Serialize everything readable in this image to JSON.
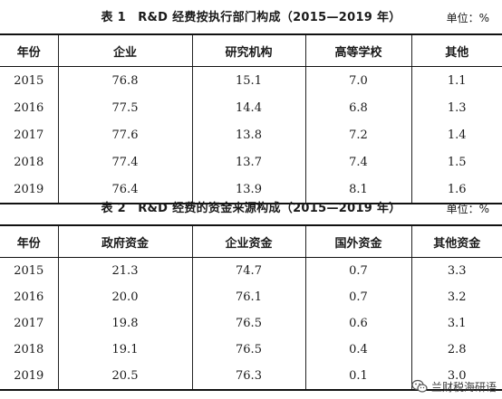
{
  "table1": {
    "caption": "表 1　R&D 经费按执行部门构成（2015—2019 年）",
    "unit": "单位：%",
    "headers": [
      "年份",
      "企业",
      "研究机构",
      "高等学校",
      "其他"
    ],
    "rows": [
      [
        "2015",
        "76.8",
        "15.1",
        "7.0",
        "1.1"
      ],
      [
        "2016",
        "77.5",
        "14.4",
        "6.8",
        "1.3"
      ],
      [
        "2017",
        "77.6",
        "13.8",
        "7.2",
        "1.4"
      ],
      [
        "2018",
        "77.4",
        "13.7",
        "7.4",
        "1.5"
      ],
      [
        "2019",
        "76.4",
        "13.9",
        "8.1",
        "1.6"
      ]
    ]
  },
  "table2": {
    "caption": "表 2　R&D 经费的资金来源构成（2015—2019 年）",
    "unit": "单位：%",
    "headers": [
      "年份",
      "政府资金",
      "企业资金",
      "国外资金",
      "其他资金"
    ],
    "rows": [
      [
        "2015",
        "21.3",
        "74.7",
        "0.7",
        "3.3"
      ],
      [
        "2016",
        "20.0",
        "76.1",
        "0.7",
        "3.2"
      ],
      [
        "2017",
        "19.8",
        "76.5",
        "0.6",
        "3.1"
      ],
      [
        "2018",
        "19.1",
        "76.5",
        "0.4",
        "2.8"
      ],
      [
        "2019",
        "20.5",
        "76.3",
        "0.1",
        "3.0"
      ]
    ]
  },
  "watermark": {
    "text": "兰财税海研语",
    "icon": "wechat-icon"
  }
}
